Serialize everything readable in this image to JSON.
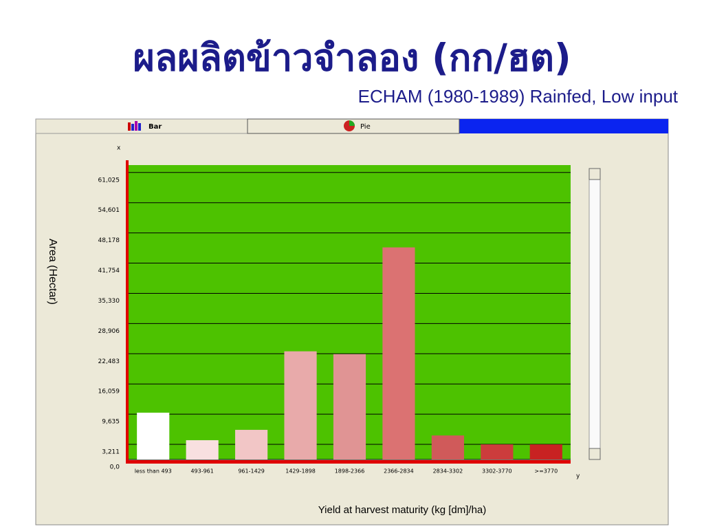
{
  "slide": {
    "title": "ผลผลิตข้าวจำลอง (กก/ฮต)",
    "subtitle": "ECHAM (1980-1989) Rainfed, Low input"
  },
  "tabs": [
    "Bar",
    "Pie"
  ],
  "chart_data": {
    "type": "bar",
    "x_label": "Yield at harvest maturity (kg [dm]/ha)",
    "y_label": "Area (Hectar)",
    "corner_labels": [
      "x",
      "y"
    ],
    "categories": [
      "less than 493",
      "493-961",
      "961-1429",
      "1429-1898",
      "1898-2366",
      "2366-2834",
      "2834-3302",
      "3302-3770",
      ">=3770"
    ],
    "values": [
      9950,
      4100,
      6300,
      23000,
      22400,
      45100,
      5100,
      3200,
      3200
    ],
    "colors": [
      "#ffffff",
      "#f8e0e0",
      "#f2c6c6",
      "#e8aaaa",
      "#e09494",
      "#db7272",
      "#d05a5a",
      "#cc3c3c",
      "#c82222"
    ],
    "ylim": [
      0,
      62600
    ],
    "yticks": [
      {
        "value": 0,
        "label": "0,0"
      },
      {
        "value": 3211,
        "label": "3,211"
      },
      {
        "value": 9635,
        "label": "9,635"
      },
      {
        "value": 16059,
        "label": "16,059"
      },
      {
        "value": 22483,
        "label": "22,483"
      },
      {
        "value": 28906,
        "label": "28,906"
      },
      {
        "value": 35330,
        "label": "35,330"
      },
      {
        "value": 41754,
        "label": "41,754"
      },
      {
        "value": 48178,
        "label": "48,178"
      },
      {
        "value": 54601,
        "label": "54,601"
      },
      {
        "value": 61025,
        "label": "61,025"
      }
    ],
    "plot_color": "#4dc200",
    "grid": true
  }
}
